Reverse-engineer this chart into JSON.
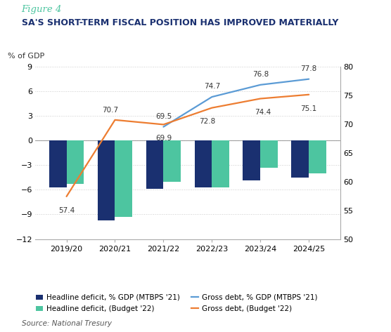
{
  "figure_label": "Figure 4",
  "title": "SA'S SHORT-TERM FISCAL POSITION HAS IMPROVED MATERIALLY",
  "ylabel_left": "% of GDP",
  "categories": [
    "2019/20",
    "2020/21",
    "2021/22",
    "2022/23",
    "2023/24",
    "2024/25"
  ],
  "bar_mtbps": [
    -5.7,
    -9.7,
    -5.9,
    -5.7,
    -4.9,
    -4.5
  ],
  "bar_budget": [
    -5.3,
    -9.3,
    -5.0,
    -5.7,
    -3.3,
    -4.0
  ],
  "gross_debt_mtbps": [
    null,
    null,
    69.5,
    74.7,
    76.8,
    77.8
  ],
  "gross_debt_budget": [
    57.4,
    70.7,
    69.9,
    72.8,
    74.4,
    75.1
  ],
  "ylim_left": [
    -12,
    9
  ],
  "ylim_right": [
    50,
    80
  ],
  "yticks_left": [
    -12,
    -9,
    -6,
    -3,
    0,
    3,
    6,
    9
  ],
  "yticks_right": [
    50,
    55,
    60,
    65,
    70,
    75,
    80
  ],
  "color_bar_mtbps": "#1a3070",
  "color_bar_budget": "#4dc5a0",
  "color_line_mtbps": "#5b9bd5",
  "color_line_budget": "#ed7d31",
  "color_figure_label": "#4dc5a0",
  "color_title": "#1a3070",
  "background_color": "#ffffff",
  "source_text": "Source: National Tresury",
  "mtbps_line_labels": [
    [
      2,
      69.5,
      "69.5"
    ],
    [
      3,
      74.7,
      "74.7"
    ],
    [
      4,
      76.8,
      "76.8"
    ],
    [
      5,
      77.8,
      "77.8"
    ]
  ],
  "budget_line_labels": [
    [
      0,
      57.4,
      "57.4"
    ],
    [
      1,
      70.7,
      "70.7"
    ],
    [
      2,
      69.9,
      "69.9"
    ],
    [
      3,
      72.8,
      "72.8"
    ],
    [
      4,
      74.4,
      "74.4"
    ],
    [
      5,
      75.1,
      "75.1"
    ]
  ]
}
